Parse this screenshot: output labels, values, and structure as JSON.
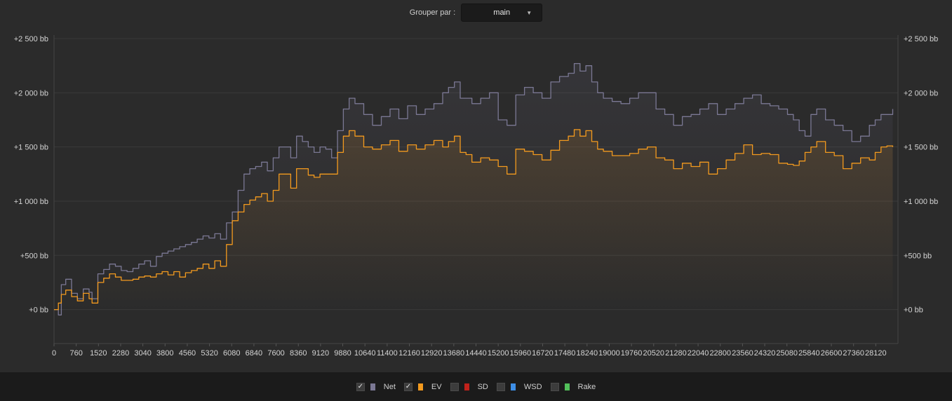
{
  "toolbar": {
    "group_label": "Grouper par :",
    "group_value": "main"
  },
  "legend": [
    {
      "label": "Net",
      "checked": true,
      "color": "#7b7894"
    },
    {
      "label": "EV",
      "checked": true,
      "color": "#f39a1e"
    },
    {
      "label": "SD",
      "checked": false,
      "color": "#c0221b"
    },
    {
      "label": "WSD",
      "checked": false,
      "color": "#3d8ee6"
    },
    {
      "label": "Rake",
      "checked": false,
      "color": "#52c05a"
    }
  ],
  "chart_data": {
    "type": "line",
    "xlim": [
      0,
      28880
    ],
    "ylim": [
      -300,
      2500
    ],
    "x_ticks": [
      0,
      760,
      1520,
      2280,
      3040,
      3800,
      4560,
      5320,
      6080,
      6840,
      7600,
      8360,
      9120,
      9880,
      10640,
      11400,
      12160,
      12920,
      13680,
      14440,
      15200,
      15960,
      16720,
      17480,
      18240,
      19000,
      19760,
      20520,
      21280,
      22040,
      22800,
      23560,
      24320,
      25080,
      25840,
      26600,
      27360,
      28120
    ],
    "y_ticks": [
      0,
      500,
      1000,
      1500,
      2000,
      2500
    ],
    "y_tick_labels": [
      "+0 bb",
      "+500 bb",
      "+1 000 bb",
      "+1 500 bb",
      "+2 000 bb",
      "+2 500 bb"
    ],
    "grid": true,
    "series": [
      {
        "name": "Net",
        "color": "#7b7894",
        "x": [
          0,
          150,
          250,
          400,
          600,
          800,
          1000,
          1200,
          1300,
          1500,
          1700,
          1900,
          2100,
          2300,
          2500,
          2700,
          2900,
          3100,
          3300,
          3500,
          3700,
          3900,
          4100,
          4300,
          4500,
          4700,
          4900,
          5100,
          5300,
          5500,
          5700,
          5900,
          6100,
          6300,
          6500,
          6700,
          6900,
          7100,
          7300,
          7500,
          7700,
          7900,
          8100,
          8300,
          8500,
          8700,
          8900,
          9100,
          9300,
          9500,
          9700,
          9900,
          10100,
          10300,
          10600,
          10900,
          11200,
          11500,
          11800,
          12100,
          12400,
          12700,
          13000,
          13300,
          13500,
          13700,
          13900,
          14100,
          14300,
          14600,
          14900,
          15200,
          15500,
          15800,
          16100,
          16400,
          16700,
          17000,
          17300,
          17600,
          17800,
          18000,
          18200,
          18400,
          18600,
          18800,
          19100,
          19400,
          19700,
          20000,
          20300,
          20600,
          20900,
          21200,
          21500,
          21800,
          22100,
          22400,
          22700,
          23000,
          23300,
          23600,
          23900,
          24200,
          24500,
          24800,
          25100,
          25300,
          25500,
          25700,
          25900,
          26100,
          26400,
          26700,
          27000,
          27300,
          27600,
          27900,
          28100,
          28300,
          28500,
          28700
        ],
        "y": [
          0,
          -50,
          230,
          280,
          150,
          100,
          190,
          160,
          100,
          330,
          370,
          420,
          400,
          360,
          350,
          380,
          420,
          450,
          400,
          490,
          520,
          540,
          560,
          580,
          600,
          620,
          650,
          680,
          660,
          700,
          650,
          800,
          900,
          1100,
          1250,
          1300,
          1320,
          1360,
          1280,
          1400,
          1500,
          1500,
          1400,
          1600,
          1550,
          1500,
          1450,
          1500,
          1480,
          1400,
          1650,
          1850,
          1950,
          1900,
          1800,
          1700,
          1780,
          1850,
          1760,
          1880,
          1800,
          1850,
          1900,
          2000,
          2050,
          2100,
          1950,
          1950,
          1900,
          1950,
          2000,
          1750,
          1700,
          1980,
          2050,
          2000,
          1950,
          2100,
          2150,
          2180,
          2270,
          2200,
          2250,
          2100,
          2000,
          1950,
          1920,
          1900,
          1950,
          2000,
          2000,
          1850,
          1800,
          1700,
          1780,
          1800,
          1850,
          1900,
          1800,
          1850,
          1900,
          1950,
          1980,
          1900,
          1880,
          1850,
          1800,
          1750,
          1650,
          1600,
          1800,
          1850,
          1750,
          1700,
          1650,
          1550,
          1600,
          1700,
          1750,
          1800,
          1800,
          1850
        ]
      },
      {
        "name": "EV",
        "color": "#f39a1e",
        "x": [
          0,
          150,
          250,
          400,
          600,
          800,
          1000,
          1200,
          1300,
          1500,
          1700,
          1900,
          2100,
          2300,
          2500,
          2700,
          2900,
          3100,
          3300,
          3500,
          3700,
          3900,
          4100,
          4300,
          4500,
          4700,
          4900,
          5100,
          5300,
          5500,
          5700,
          5900,
          6100,
          6300,
          6500,
          6700,
          6900,
          7100,
          7300,
          7500,
          7700,
          7900,
          8100,
          8300,
          8500,
          8700,
          8900,
          9100,
          9300,
          9500,
          9700,
          9900,
          10100,
          10300,
          10600,
          10900,
          11200,
          11500,
          11800,
          12100,
          12400,
          12700,
          13000,
          13300,
          13500,
          13700,
          13900,
          14100,
          14300,
          14600,
          14900,
          15200,
          15500,
          15800,
          16100,
          16400,
          16700,
          17000,
          17300,
          17600,
          17800,
          18000,
          18200,
          18400,
          18600,
          18800,
          19100,
          19400,
          19700,
          20000,
          20300,
          20600,
          20900,
          21200,
          21500,
          21800,
          22100,
          22400,
          22700,
          23000,
          23300,
          23600,
          23900,
          24200,
          24500,
          24800,
          25100,
          25300,
          25500,
          25700,
          25900,
          26100,
          26400,
          26700,
          27000,
          27300,
          27600,
          27900,
          28100,
          28300,
          28500,
          28700
        ],
        "y": [
          0,
          60,
          140,
          180,
          120,
          80,
          150,
          100,
          60,
          250,
          290,
          330,
          300,
          270,
          270,
          280,
          300,
          310,
          300,
          330,
          350,
          320,
          350,
          300,
          340,
          360,
          380,
          420,
          380,
          450,
          400,
          600,
          820,
          900,
          970,
          1010,
          1040,
          1070,
          1000,
          1100,
          1250,
          1250,
          1120,
          1300,
          1300,
          1240,
          1220,
          1250,
          1250,
          1250,
          1450,
          1600,
          1650,
          1600,
          1500,
          1480,
          1520,
          1560,
          1460,
          1520,
          1480,
          1520,
          1560,
          1500,
          1550,
          1600,
          1450,
          1430,
          1360,
          1400,
          1380,
          1320,
          1250,
          1480,
          1460,
          1430,
          1380,
          1470,
          1560,
          1600,
          1660,
          1600,
          1650,
          1550,
          1480,
          1460,
          1420,
          1420,
          1440,
          1480,
          1500,
          1400,
          1380,
          1300,
          1350,
          1320,
          1360,
          1250,
          1300,
          1380,
          1440,
          1520,
          1430,
          1440,
          1430,
          1350,
          1340,
          1330,
          1370,
          1450,
          1500,
          1550,
          1450,
          1420,
          1300,
          1350,
          1400,
          1380,
          1450,
          1500,
          1510,
          1500
        ]
      }
    ]
  }
}
